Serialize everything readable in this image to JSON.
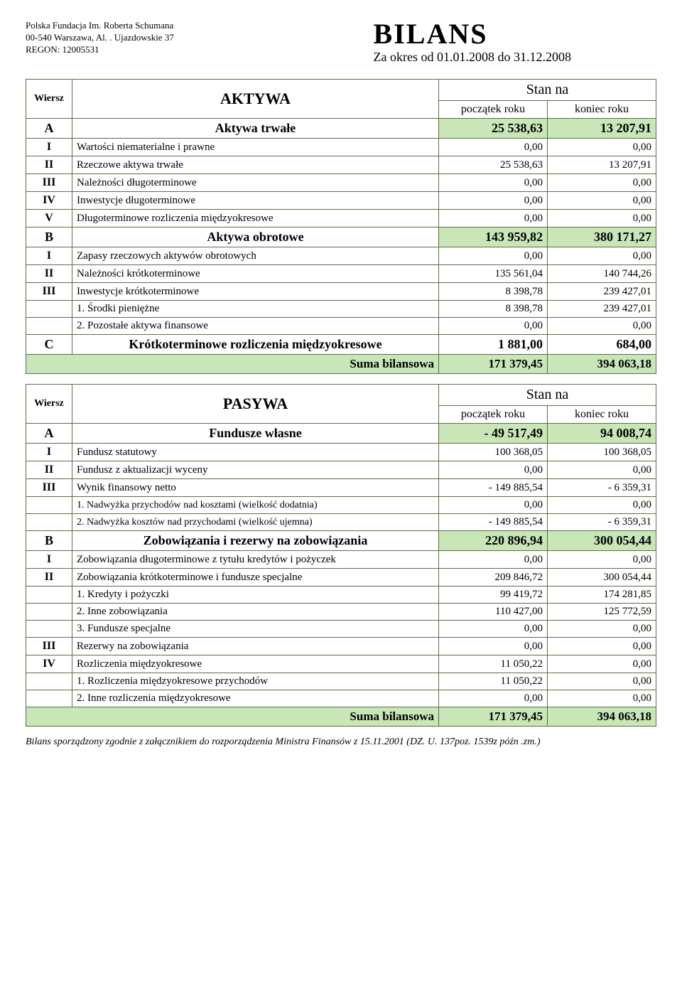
{
  "org": {
    "line1": "Polska Fundacja Im. Roberta Schumana",
    "line2": "00-540 Warszawa, Al. . Ujazdowskie 37",
    "line3": "REGON: 12005531"
  },
  "title": {
    "main": "BILANS",
    "sub": "Za okres od  01.01.2008  do  31.12.2008"
  },
  "aktywa": {
    "wiersz_label": "Wiersz",
    "heading": "AKTYWA",
    "stan_na": "Stan na",
    "poczatek": "początek roku",
    "koniec": "koniec roku",
    "rows": [
      {
        "code": "A",
        "desc": "Aktywa trwałe",
        "v1": "25 538,63",
        "v2": "13 207,91",
        "section": true,
        "hl": true
      },
      {
        "code": "I",
        "desc": "Wartości niematerialne i prawne",
        "v1": "0,00",
        "v2": "0,00",
        "roman": true
      },
      {
        "code": "II",
        "desc": "Rzeczowe aktywa trwałe",
        "v1": "25 538,63",
        "v2": "13 207,91",
        "roman": true
      },
      {
        "code": "III",
        "desc": "Należności długoterminowe",
        "v1": "0,00",
        "v2": "0,00",
        "roman": true
      },
      {
        "code": "IV",
        "desc": "Inwestycje długoterminowe",
        "v1": "0,00",
        "v2": "0,00",
        "roman": true
      },
      {
        "code": "V",
        "desc": "Długoterminowe rozliczenia międzyokresowe",
        "v1": "0,00",
        "v2": "0,00",
        "roman": true
      },
      {
        "code": "B",
        "desc": "Aktywa obrotowe",
        "v1": "143 959,82",
        "v2": "380 171,27",
        "section": true,
        "hl": true
      },
      {
        "code": "I",
        "desc": "Zapasy rzeczowych aktywów obrotowych",
        "v1": "0,00",
        "v2": "0,00",
        "roman": true
      },
      {
        "code": "II",
        "desc": "Należności krótkoterminowe",
        "v1": "135 561,04",
        "v2": "140 744,26",
        "roman": true
      },
      {
        "code": "III",
        "desc": "Inwestycje krótkoterminowe",
        "v1": "8 398,78",
        "v2": "239 427,01",
        "roman": true
      },
      {
        "code": "",
        "desc": "1.   Środki pieniężne",
        "v1": "8 398,78",
        "v2": "239 427,01",
        "sub": true
      },
      {
        "code": "",
        "desc": "2.   Pozostałe aktywa finansowe",
        "v1": "0,00",
        "v2": "0,00",
        "sub": true
      },
      {
        "code": "C",
        "desc": "Krótkoterminowe rozliczenia międzyokresowe",
        "v1": "1 881,00",
        "v2": "684,00",
        "section": true
      }
    ],
    "suma": {
      "label": "Suma bilansowa",
      "v1": "171 379,45",
      "v2": "394 063,18"
    }
  },
  "pasywa": {
    "wiersz_label": "Wiersz",
    "heading": "PASYWA",
    "stan_na": "Stan na",
    "poczatek": "początek roku",
    "koniec": "koniec roku",
    "rows": [
      {
        "code": "A",
        "desc": "Fundusze własne",
        "v1": "- 49 517,49",
        "v2": "94 008,74",
        "section": true,
        "hl": true
      },
      {
        "code": "I",
        "desc": "Fundusz statutowy",
        "v1": "100 368,05",
        "v2": "100 368,05",
        "roman": true
      },
      {
        "code": "II",
        "desc": "Fundusz z aktualizacji wyceny",
        "v1": "0,00",
        "v2": "0,00",
        "roman": true
      },
      {
        "code": "III",
        "desc": "Wynik finansowy netto",
        "v1": "- 149 885,54",
        "v2": "- 6 359,31",
        "roman": true
      },
      {
        "code": "",
        "desc": "1.   Nadwyżka przychodów nad kosztami (wielkość dodatnia)",
        "v1": "0,00",
        "v2": "0,00",
        "sub": true,
        "small": true
      },
      {
        "code": "",
        "desc": "2.   Nadwyżka kosztów nad przychodami (wielkość ujemna)",
        "v1": "- 149 885,54",
        "v2": "- 6 359,31",
        "sub": true,
        "small": true
      },
      {
        "code": "B",
        "desc": "Zobowiązania i rezerwy na zobowiązania",
        "v1": "220 896,94",
        "v2": "300 054,44",
        "section": true,
        "hl": true
      },
      {
        "code": "I",
        "desc": "Zobowiązania długoterminowe z tytułu kredytów i pożyczek",
        "v1": "0,00",
        "v2": "0,00",
        "roman": true
      },
      {
        "code": "II",
        "desc": "Zobowiązania krótkoterminowe i fundusze specjalne",
        "v1": "209 846,72",
        "v2": "300 054,44",
        "roman": true
      },
      {
        "code": "",
        "desc": "1.   Kredyty i pożyczki",
        "v1": "99 419,72",
        "v2": "174 281,85",
        "sub": true
      },
      {
        "code": "",
        "desc": "2.   Inne zobowiązania",
        "v1": "110 427,00",
        "v2": "125 772,59",
        "sub": true
      },
      {
        "code": "",
        "desc": "3.   Fundusze specjalne",
        "v1": "0,00",
        "v2": "0,00",
        "sub": true
      },
      {
        "code": "III",
        "desc": "Rezerwy na zobowiązania",
        "v1": "0,00",
        "v2": "0,00",
        "roman": true
      },
      {
        "code": "IV",
        "desc": "Rozliczenia międzyokresowe",
        "v1": "11 050,22",
        "v2": "0,00",
        "roman": true
      },
      {
        "code": "",
        "desc": "1.   Rozliczenia międzyokresowe przychodów",
        "v1": "11 050,22",
        "v2": "0,00",
        "sub": true
      },
      {
        "code": "",
        "desc": "2.   Inne rozliczenia międzyokresowe",
        "v1": "0,00",
        "v2": "0,00",
        "sub": true
      }
    ],
    "suma": {
      "label": "Suma bilansowa",
      "v1": "171 379,45",
      "v2": "394 063,18"
    }
  },
  "footnote": "Bilans sporządzony zgodnie z załącznikiem do rozporządzenia Ministra Finansów z 15.11.2001 (DZ. U. 137poz. 1539z późn .zm.)",
  "colors": {
    "highlight": "#c8e6b8",
    "border": "#5a7040",
    "text": "#000000",
    "background": "#ffffff"
  }
}
